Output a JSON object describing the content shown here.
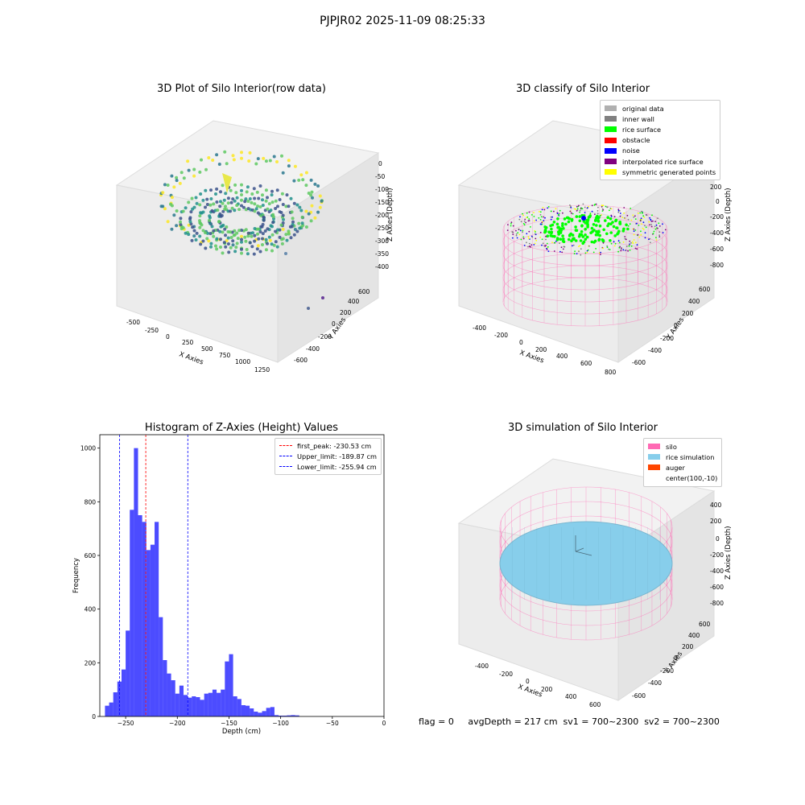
{
  "suptitle": "PJPJR02 2025-11-09 08:25:33",
  "panels": {
    "tl": {
      "title": "3D Plot of Silo Interior(row data)",
      "xlabel": "X Axies",
      "ylabel": "Y Axies",
      "zlabel": "Z Axies (Depth)",
      "xticks": [
        "-500",
        "-250",
        "0",
        "250",
        "500",
        "750",
        "1000",
        "1250"
      ],
      "yticks": [
        "-600",
        "-400",
        "-200",
        "0",
        "200",
        "400",
        "600"
      ],
      "zticks": [
        "0",
        "-50",
        "-100",
        "-150",
        "-200",
        "-250",
        "-300",
        "-350",
        "-400"
      ],
      "colormap": "viridis"
    },
    "tr": {
      "title": "3D classify of Silo Interior",
      "xlabel": "X Axies",
      "ylabel": "Y Axies",
      "zlabel": "Z Axies (Depth)",
      "xticks": [
        "-400",
        "-200",
        "0",
        "200",
        "400",
        "600",
        "800"
      ],
      "yticks": [
        "-600",
        "-400",
        "-200",
        "0",
        "200",
        "400",
        "600"
      ],
      "zticks": [
        "200",
        "0",
        "-200",
        "-400",
        "-600",
        "-800"
      ],
      "legend": [
        {
          "label": "original data",
          "color": "#b0b0b0"
        },
        {
          "label": "inner wall",
          "color": "#808080"
        },
        {
          "label": "rice surface",
          "color": "#00ff00"
        },
        {
          "label": "obstacle",
          "color": "#ff0000"
        },
        {
          "label": "noise",
          "color": "#0000ff"
        },
        {
          "label": "interpolated rice surface",
          "color": "#800080"
        },
        {
          "label": "symmetric generated points",
          "color": "#ffff00"
        }
      ]
    },
    "br": {
      "title": "3D simulation of Silo Interior",
      "xlabel": "X Axies",
      "ylabel": "Y Axies",
      "zlabel": "Z Axies (Depth)",
      "xticks": [
        "-400",
        "-200",
        "0",
        "200",
        "400",
        "600"
      ],
      "yticks": [
        "-600",
        "-400",
        "-200",
        "0",
        "200",
        "400",
        "600"
      ],
      "zticks": [
        "400",
        "200",
        "0",
        "-200",
        "-400",
        "-600",
        "-800"
      ],
      "legend": [
        {
          "label": "silo",
          "color": "#ff69b4"
        },
        {
          "label": "rice simulation",
          "color": "#87ceeb"
        },
        {
          "label": "auger",
          "color": "#ff4500"
        },
        {
          "label": "center(100,-10)",
          "color": ""
        }
      ]
    }
  },
  "footer": "flag = 0     avgDepth = 217 cm  sv1 = 700~2300  sv2 = 700~2300",
  "chart_data": {
    "type": "bar",
    "title": "Histogram of Z-Axies (Height) Values",
    "xlabel": "Depth (cm)",
    "ylabel": "Frequency",
    "xlim": [
      -275,
      0
    ],
    "ylim": [
      0,
      1050
    ],
    "xticks": [
      -250,
      -200,
      -150,
      -100,
      -50,
      0
    ],
    "yticks": [
      0,
      200,
      400,
      600,
      800,
      1000
    ],
    "bar_color": "#0000ff",
    "bars": [
      {
        "x0": -270,
        "x1": -266,
        "value": 40
      },
      {
        "x0": -266,
        "x1": -262,
        "value": 52
      },
      {
        "x0": -262,
        "x1": -258,
        "value": 90
      },
      {
        "x0": -258,
        "x1": -254,
        "value": 130
      },
      {
        "x0": -254,
        "x1": -250,
        "value": 175
      },
      {
        "x0": -250,
        "x1": -246,
        "value": 320
      },
      {
        "x0": -246,
        "x1": -242,
        "value": 770
      },
      {
        "x0": -242,
        "x1": -238,
        "value": 1000
      },
      {
        "x0": -238,
        "x1": -234,
        "value": 750
      },
      {
        "x0": -234,
        "x1": -230,
        "value": 725
      },
      {
        "x0": -230,
        "x1": -226,
        "value": 620
      },
      {
        "x0": -226,
        "x1": -222,
        "value": 640
      },
      {
        "x0": -222,
        "x1": -218,
        "value": 725
      },
      {
        "x0": -218,
        "x1": -214,
        "value": 370
      },
      {
        "x0": -214,
        "x1": -210,
        "value": 210
      },
      {
        "x0": -210,
        "x1": -206,
        "value": 160
      },
      {
        "x0": -206,
        "x1": -202,
        "value": 135
      },
      {
        "x0": -202,
        "x1": -198,
        "value": 85
      },
      {
        "x0": -198,
        "x1": -194,
        "value": 115
      },
      {
        "x0": -194,
        "x1": -190,
        "value": 80
      },
      {
        "x0": -190,
        "x1": -186,
        "value": 70
      },
      {
        "x0": -186,
        "x1": -182,
        "value": 75
      },
      {
        "x0": -182,
        "x1": -178,
        "value": 72
      },
      {
        "x0": -178,
        "x1": -174,
        "value": 62
      },
      {
        "x0": -174,
        "x1": -170,
        "value": 85
      },
      {
        "x0": -170,
        "x1": -166,
        "value": 88
      },
      {
        "x0": -166,
        "x1": -162,
        "value": 100
      },
      {
        "x0": -162,
        "x1": -158,
        "value": 88
      },
      {
        "x0": -158,
        "x1": -154,
        "value": 100
      },
      {
        "x0": -154,
        "x1": -150,
        "value": 205
      },
      {
        "x0": -150,
        "x1": -146,
        "value": 232
      },
      {
        "x0": -146,
        "x1": -142,
        "value": 75
      },
      {
        "x0": -142,
        "x1": -138,
        "value": 65
      },
      {
        "x0": -138,
        "x1": -134,
        "value": 42
      },
      {
        "x0": -134,
        "x1": -130,
        "value": 40
      },
      {
        "x0": -130,
        "x1": -126,
        "value": 30
      },
      {
        "x0": -126,
        "x1": -122,
        "value": 18
      },
      {
        "x0": -122,
        "x1": -118,
        "value": 14
      },
      {
        "x0": -118,
        "x1": -114,
        "value": 20
      },
      {
        "x0": -114,
        "x1": -110,
        "value": 32
      },
      {
        "x0": -110,
        "x1": -106,
        "value": 35
      },
      {
        "x0": -106,
        "x1": -102,
        "value": 5
      },
      {
        "x0": -102,
        "x1": -98,
        "value": 3
      },
      {
        "x0": -98,
        "x1": -94,
        "value": 3
      },
      {
        "x0": -94,
        "x1": -90,
        "value": 4
      },
      {
        "x0": -90,
        "x1": -86,
        "value": 5
      },
      {
        "x0": -86,
        "x1": -82,
        "value": 4
      }
    ],
    "vlines": [
      {
        "x": -230.53,
        "color": "#ff0000",
        "label": "first_peak: -230.53 cm"
      },
      {
        "x": -189.87,
        "color": "#0000ff",
        "label": "Upper_limit: -189.87 cm"
      },
      {
        "x": -255.94,
        "color": "#0000ff",
        "label": "Lower_limit: -255.94 cm"
      }
    ]
  }
}
